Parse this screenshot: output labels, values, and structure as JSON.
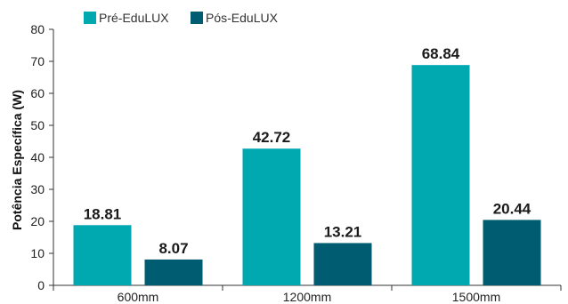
{
  "chart_data": {
    "type": "bar",
    "categories": [
      "600mm",
      "1200mm",
      "1500mm"
    ],
    "series": [
      {
        "name": "Pré-EduLUX",
        "values": [
          18.81,
          42.72,
          68.84
        ],
        "color": "#00a8b0"
      },
      {
        "name": "Pós-EduLUX",
        "values": [
          8.07,
          13.21,
          20.44
        ],
        "color": "#005c70"
      }
    ],
    "value_labels": [
      [
        "18.81",
        "42.72",
        "68.84"
      ],
      [
        "8.07",
        "13.21",
        "20.44"
      ]
    ],
    "ylabel": "Potência Específica (W)",
    "xlabel": "",
    "ylim": [
      0,
      80
    ],
    "yticks": [
      0,
      10,
      20,
      30,
      40,
      50,
      60,
      70,
      80
    ],
    "legend_position": "top-left",
    "grid": false
  }
}
